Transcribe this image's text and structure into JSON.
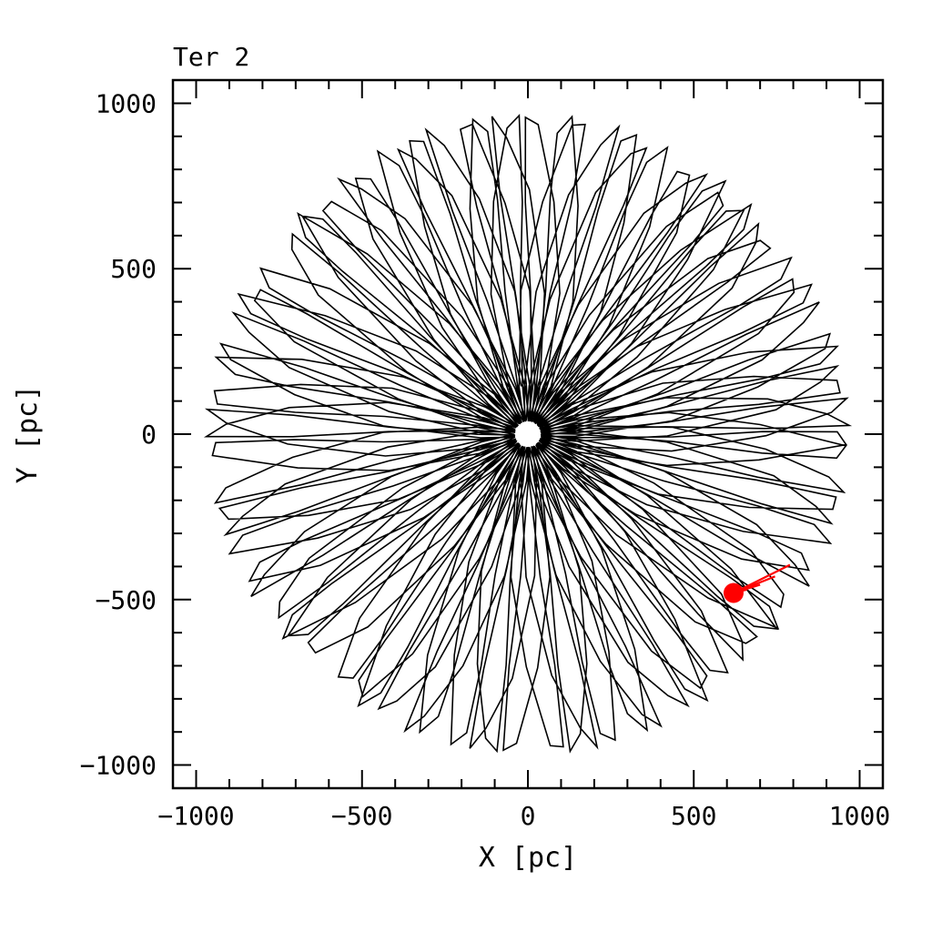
{
  "chart_data": {
    "type": "line",
    "title": "Ter 2",
    "xlabel": "X [pc]",
    "ylabel": "Y [pc]",
    "xlim": [
      -1070,
      1070
    ],
    "ylim": [
      -1070,
      1070
    ],
    "x_ticks": [
      -1000,
      -500,
      0,
      500,
      1000
    ],
    "y_ticks": [
      -1000,
      -500,
      0,
      500,
      1000
    ],
    "x_tick_labels": [
      "−1000",
      "−500",
      "0",
      "500",
      "1000"
    ],
    "y_tick_labels": [
      "−1000",
      "−500",
      "0",
      "500",
      "1000"
    ],
    "minor_tick_step": 100,
    "grid": false,
    "series": [
      {
        "role": "orbit",
        "color": "#000000",
        "rosette": {
          "r_peri": 40,
          "r_apo": 960,
          "lobes": 92,
          "precession_deg": 21.0,
          "samples_per_lobe": 9,
          "start_angle_deg": -38
        }
      },
      {
        "role": "recent-track",
        "color": "#ff0000",
        "x": [
          620,
          660,
          700,
          745,
          790
        ],
        "y": [
          -480,
          -470,
          -455,
          -430,
          -395
        ]
      }
    ],
    "current_position": {
      "x": 620,
      "y": -480,
      "color": "#ff0000"
    }
  }
}
